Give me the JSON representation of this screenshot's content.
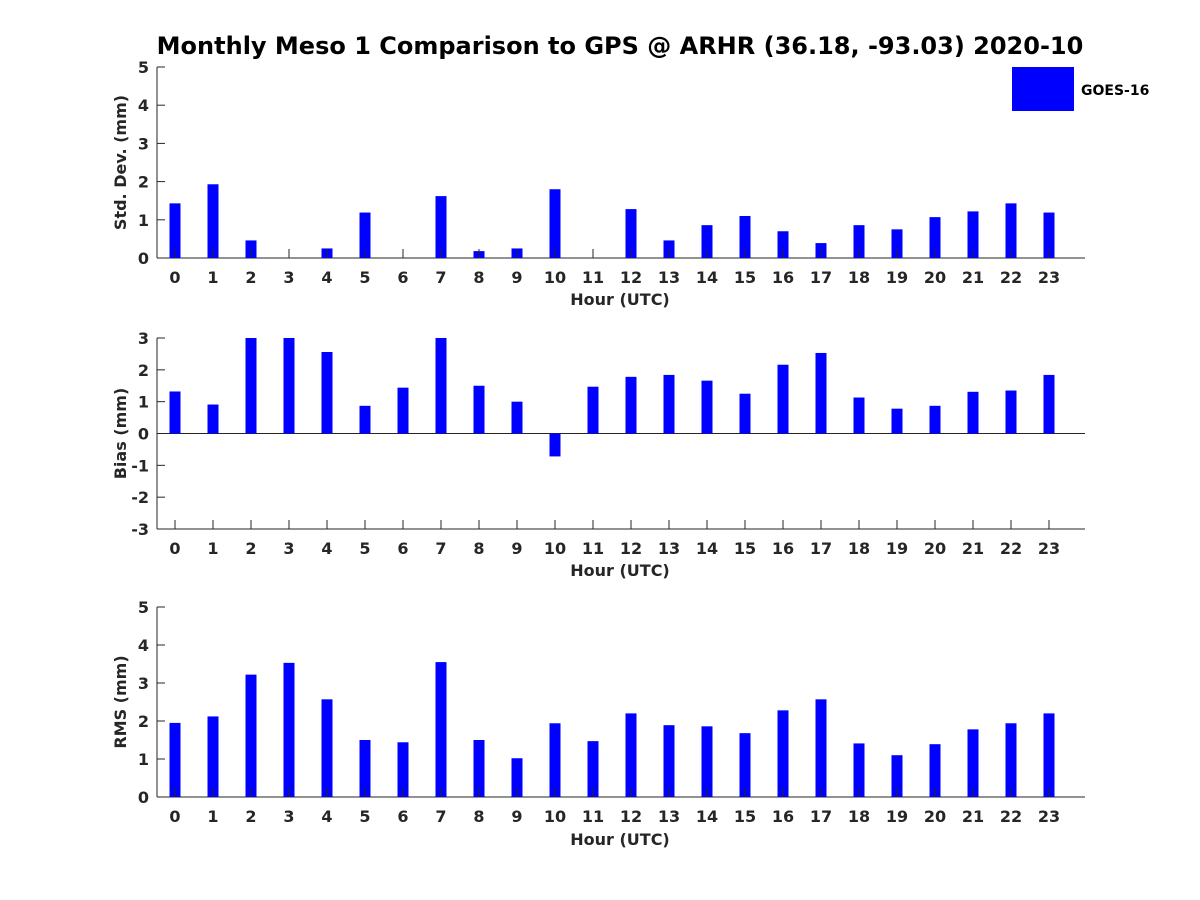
{
  "chart_data": {
    "title": "Monthly Meso 1 Comparison to GPS @ ARHR (36.18, -93.03) 2020-10",
    "legend": {
      "label": "GOES-16",
      "color": "#0000ff",
      "placement": "top-right"
    },
    "bar_color": "#0000ff",
    "panels": [
      {
        "type": "bar",
        "ylabel": "Std. Dev. (mm)",
        "xlabel": "Hour (UTC)",
        "ylim": [
          0,
          5
        ],
        "yticks": [
          "0",
          "1",
          "2",
          "3",
          "4",
          "5"
        ],
        "categories": [
          "0",
          "1",
          "2",
          "3",
          "4",
          "5",
          "6",
          "7",
          "8",
          "9",
          "10",
          "11",
          "12",
          "13",
          "14",
          "15",
          "16",
          "17",
          "18",
          "19",
          "20",
          "21",
          "22",
          "23"
        ],
        "values": [
          1.43,
          1.93,
          0.46,
          0,
          0.25,
          1.19,
          0,
          1.62,
          0.18,
          0.25,
          1.8,
          0,
          1.28,
          0.46,
          0.86,
          1.1,
          0.7,
          0.39,
          0.86,
          0.75,
          1.07,
          1.22,
          1.43,
          1.19
        ],
        "grid": false
      },
      {
        "type": "bar",
        "ylabel": "Bias (mm)",
        "xlabel": "Hour (UTC)",
        "ylim": [
          -3,
          3
        ],
        "yticks": [
          "-3",
          "-2",
          "-1",
          "0",
          "1",
          "2",
          "3"
        ],
        "categories": [
          "0",
          "1",
          "2",
          "3",
          "4",
          "5",
          "6",
          "7",
          "8",
          "9",
          "10",
          "11",
          "12",
          "13",
          "14",
          "15",
          "16",
          "17",
          "18",
          "19",
          "20",
          "21",
          "22",
          "23"
        ],
        "values": [
          1.32,
          0.91,
          3.0,
          3.0,
          2.56,
          0.87,
          1.44,
          3.0,
          1.5,
          1.0,
          -0.72,
          1.47,
          1.78,
          1.84,
          1.66,
          1.25,
          2.16,
          2.53,
          1.13,
          0.78,
          0.87,
          1.31,
          1.35,
          1.84
        ],
        "grid": false
      },
      {
        "type": "bar",
        "ylabel": "RMS (mm)",
        "xlabel": "Hour (UTC)",
        "ylim": [
          0,
          5
        ],
        "yticks": [
          "0",
          "1",
          "2",
          "3",
          "4",
          "5"
        ],
        "categories": [
          "0",
          "1",
          "2",
          "3",
          "4",
          "5",
          "6",
          "7",
          "8",
          "9",
          "10",
          "11",
          "12",
          "13",
          "14",
          "15",
          "16",
          "17",
          "18",
          "19",
          "20",
          "21",
          "22",
          "23"
        ],
        "values": [
          1.95,
          2.12,
          3.22,
          3.53,
          2.57,
          1.5,
          1.44,
          3.55,
          1.5,
          1.02,
          1.94,
          1.47,
          2.2,
          1.89,
          1.86,
          1.68,
          2.28,
          2.57,
          1.41,
          1.1,
          1.39,
          1.78,
          1.94,
          2.2
        ],
        "grid": false
      }
    ]
  }
}
